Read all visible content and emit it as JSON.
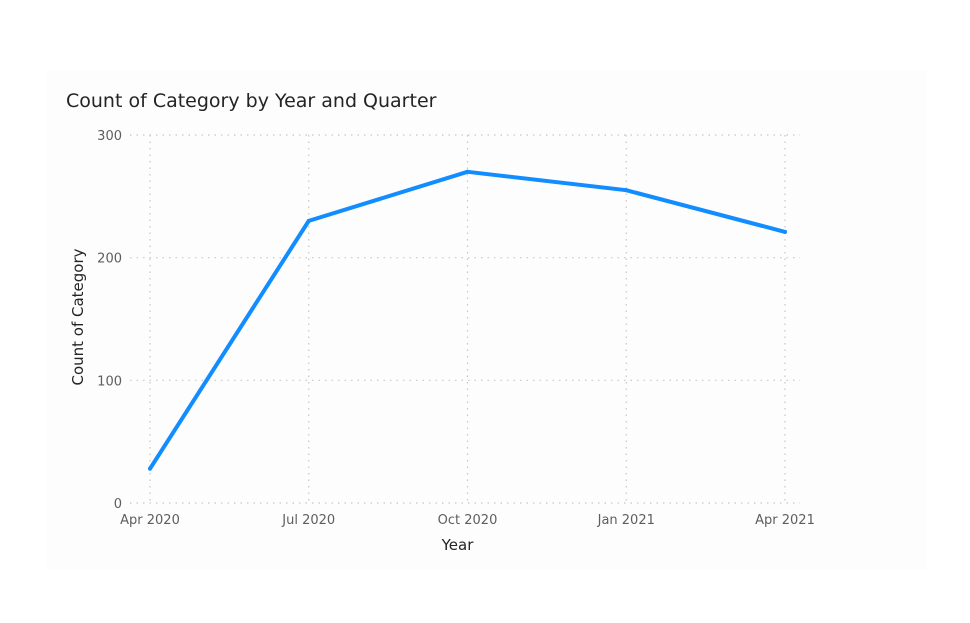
{
  "chart_data": {
    "type": "line",
    "title": "Count of Category by Year and Quarter",
    "xlabel": "Year",
    "ylabel": "Count of Category",
    "categories": [
      "Apr 2020",
      "Jul 2020",
      "Oct 2020",
      "Jan 2021",
      "Apr 2021"
    ],
    "series": [
      {
        "values": [
          28,
          230,
          270,
          255,
          221
        ]
      }
    ],
    "ylim": [
      0,
      300
    ],
    "yticks": [
      0,
      100,
      200,
      300
    ],
    "grid": true,
    "line_color": "#118DFF"
  }
}
